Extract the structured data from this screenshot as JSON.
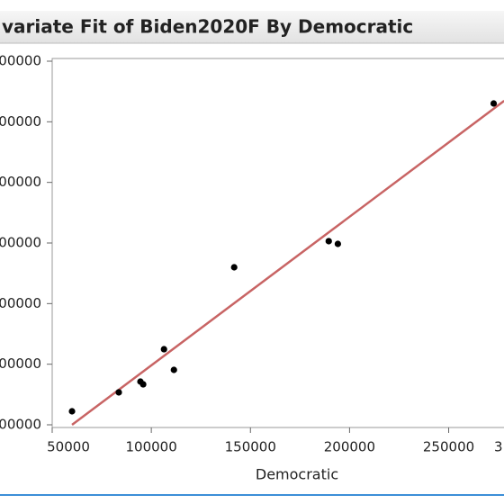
{
  "chart_data": {
    "type": "scatter",
    "title": "variate Fit of Biden2020F By Democratic",
    "x_label": "Democratic",
    "x": [
      60000,
      83600,
      94500,
      95900,
      106400,
      111400,
      141800,
      189500,
      194100,
      272700
    ],
    "y": [
      122300,
      153500,
      171300,
      166800,
      224700,
      190600,
      359900,
      403000,
      398500,
      630200
    ],
    "color": "#000000",
    "fit_line": {
      "x": [
        60000,
        278000
      ],
      "y": [
        100000,
        634600
      ],
      "color": "#c86464"
    },
    "xlim": [
      50000,
      277000
    ],
    "xticks": [
      50000,
      100000,
      150000,
      200000,
      250000,
      {
        "value": 300000,
        "label": "3"
      }
    ],
    "ylim": [
      100000,
      700000
    ],
    "yticks": [
      {
        "value": 100000,
        "label": "00000"
      },
      {
        "value": 200000,
        "label": "00000"
      },
      {
        "value": 300000,
        "label": "00000"
      },
      {
        "value": 400000,
        "label": "00000"
      },
      {
        "value": 500000,
        "label": "00000"
      },
      {
        "value": 600000,
        "label": "00000"
      },
      {
        "value": 700000,
        "label": "00000"
      }
    ],
    "grid": false
  }
}
